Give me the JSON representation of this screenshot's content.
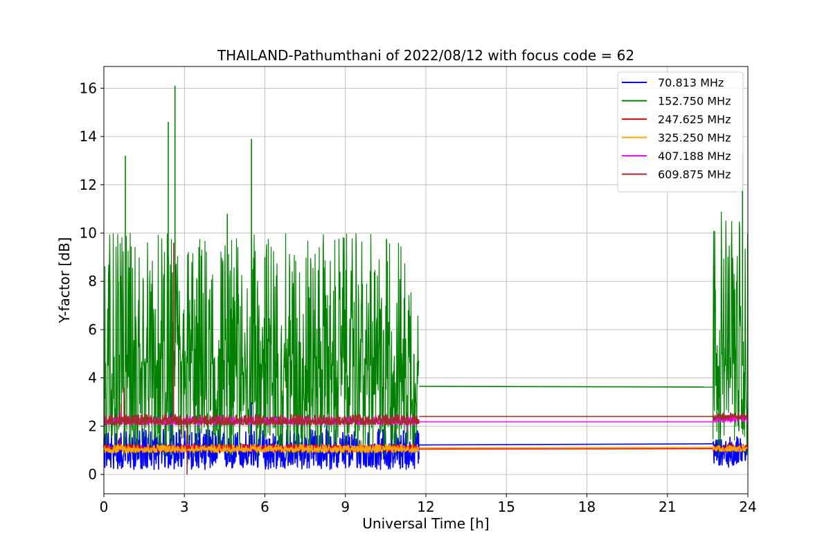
{
  "chart_data": {
    "type": "line",
    "title": "THAILAND-Pathumthani of 2022/08/12 with focus code = 62",
    "xlabel": "Universal Time [h]",
    "ylabel": "Y-factor [dB]",
    "xlim": [
      0,
      24
    ],
    "ylim": [
      -0.8,
      16.9
    ],
    "xticks": [
      0,
      3,
      6,
      9,
      12,
      15,
      18,
      21,
      24
    ],
    "yticks": [
      0,
      2,
      4,
      6,
      8,
      10,
      12,
      14,
      16
    ],
    "grid": true,
    "legend_position": "top-right",
    "series": [
      {
        "name": " 70.813 MHz",
        "color": "#0000ff",
        "noisy_segments": [
          {
            "x_start": 0.0,
            "x_end": 11.75,
            "low": 0.2,
            "high": 1.9,
            "base": 1.0
          },
          {
            "x_start": 22.7,
            "x_end": 24.0,
            "low": 0.3,
            "high": 1.6,
            "base": 1.0
          }
        ],
        "spikes": [
          [
            2.5,
            3.4
          ],
          [
            3.4,
            2.7
          ],
          [
            5.5,
            3.0
          ],
          [
            8.3,
            2.1
          ],
          [
            10.7,
            2.3
          ]
        ],
        "flat_segment": {
          "x": [
            11.75,
            22.7
          ],
          "y": [
            1.22,
            1.27
          ]
        }
      },
      {
        "name": "152.750 MHz",
        "color": "#008000",
        "noisy_segments": [
          {
            "x_start": 0.0,
            "x_end": 11.75,
            "low": 0.7,
            "high": 10.0,
            "base": 4.5
          },
          {
            "x_start": 22.7,
            "x_end": 24.0,
            "low": 0.7,
            "high": 11.0,
            "base": 4.5
          }
        ],
        "spikes": [
          [
            0.8,
            13.2
          ],
          [
            2.4,
            14.6
          ],
          [
            2.65,
            16.1
          ],
          [
            5.5,
            13.9
          ],
          [
            4.6,
            10.8
          ],
          [
            6.0,
            9.0
          ],
          [
            23.8,
            13.3
          ]
        ],
        "flat_segment": {
          "x": [
            11.75,
            22.7
          ],
          "y": [
            3.65,
            3.62
          ]
        }
      },
      {
        "name": "247.625 MHz",
        "color": "#ff0000",
        "noisy_segments": [
          {
            "x_start": 0.0,
            "x_end": 11.75,
            "low": 0.95,
            "high": 1.25,
            "base": 1.1
          },
          {
            "x_start": 22.7,
            "x_end": 24.0,
            "low": 0.95,
            "high": 1.25,
            "base": 1.1
          }
        ],
        "spikes": [
          [
            0.6,
            1.5
          ],
          [
            1.0,
            1.3
          ]
        ],
        "flat_segment": {
          "x": [
            11.75,
            22.7
          ],
          "y": [
            1.05,
            1.07
          ]
        }
      },
      {
        "name": "325.250 MHz",
        "color": "#ffa500",
        "noisy_segments": [
          {
            "x_start": 0.0,
            "x_end": 11.75,
            "low": 0.9,
            "high": 1.25,
            "base": 1.05
          },
          {
            "x_start": 22.7,
            "x_end": 24.0,
            "low": 0.95,
            "high": 1.2,
            "base": 1.08
          }
        ],
        "spikes": [
          [
            9.6,
            1.4
          ]
        ],
        "flat_segment": {
          "x": [
            11.75,
            22.7
          ],
          "y": [
            1.1,
            1.12
          ]
        }
      },
      {
        "name": "407.188 MHz",
        "color": "#ff00ff",
        "noisy_segments": [
          {
            "x_start": 0.0,
            "x_end": 11.75,
            "low": 2.05,
            "high": 2.4,
            "base": 2.2
          },
          {
            "x_start": 22.7,
            "x_end": 24.0,
            "low": 2.15,
            "high": 2.5,
            "base": 2.3
          }
        ],
        "spikes": [
          [
            0.6,
            2.6
          ],
          [
            11.3,
            1.8
          ]
        ],
        "flat_segment": {
          "x": [
            11.75,
            22.7
          ],
          "y": [
            2.18,
            2.18
          ]
        }
      },
      {
        "name": "609.875 MHz",
        "color": "#a52a2a",
        "noisy_segments": [
          {
            "x_start": 0.0,
            "x_end": 11.75,
            "low": 2.05,
            "high": 2.5,
            "base": 2.2
          },
          {
            "x_start": 22.7,
            "x_end": 24.0,
            "low": 2.25,
            "high": 2.55,
            "base": 2.4
          }
        ],
        "spikes": [
          [
            0.65,
            2.95
          ],
          [
            0.75,
            3.6
          ],
          [
            2.6,
            9.6
          ],
          [
            2.9,
            1.5
          ],
          [
            3.1,
            0.0
          ]
        ],
        "flat_segment": {
          "x": [
            11.75,
            22.7
          ],
          "y": [
            2.4,
            2.4
          ]
        }
      }
    ]
  }
}
